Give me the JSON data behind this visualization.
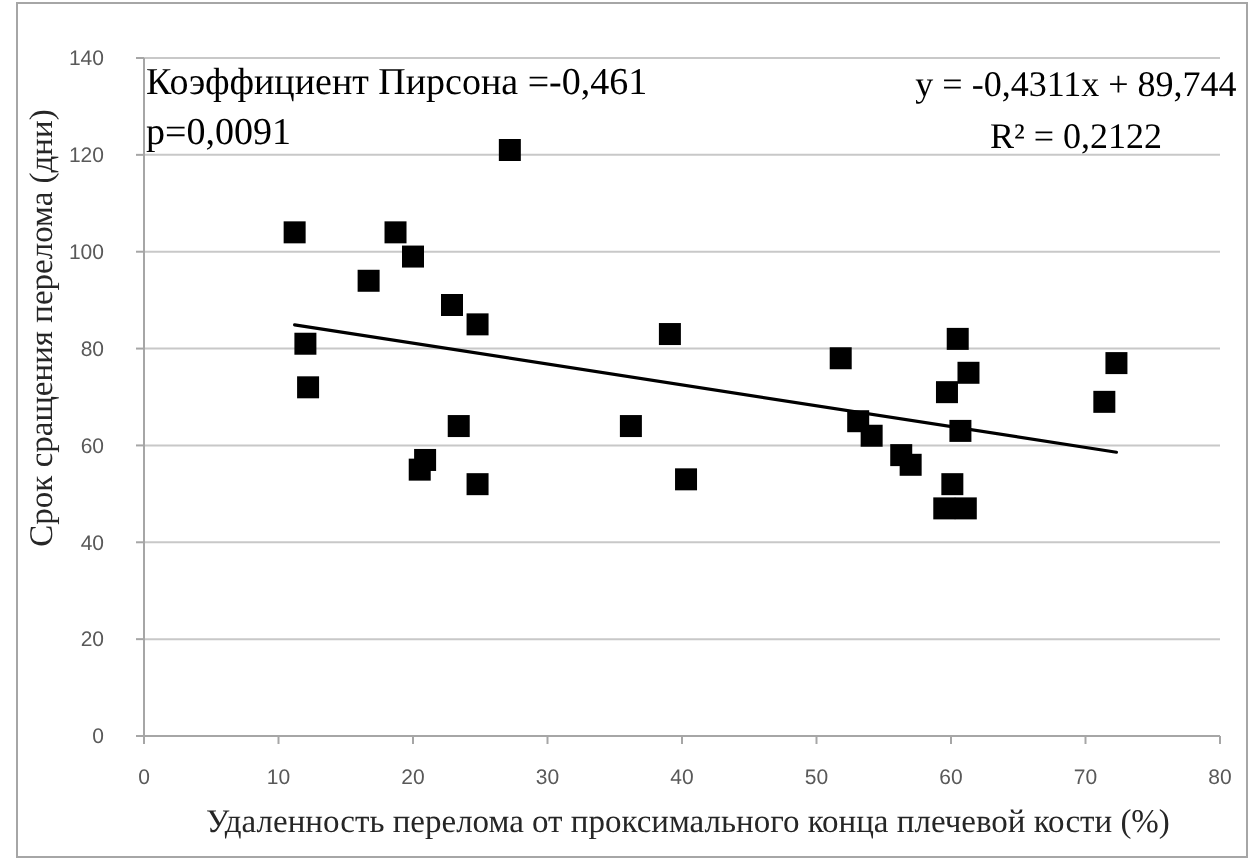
{
  "chart_data": {
    "type": "scatter",
    "xlabel": "Удаленность перелома от проксимального конца плечевой кости (%)",
    "ylabel": "Срок сращения перелома (дни)",
    "xlim": [
      0,
      80
    ],
    "ylim": [
      0,
      140
    ],
    "xticks": [
      0,
      10,
      20,
      30,
      40,
      50,
      60,
      70,
      80
    ],
    "yticks": [
      0,
      20,
      40,
      60,
      80,
      100,
      120,
      140
    ],
    "grid": "y",
    "marker": "square",
    "annotations": [
      "Коэффициент Пирсона =-0,461",
      "p=0,0091",
      "y = -0,4311x + 89,744",
      "R² = 0,2122"
    ],
    "series": [
      {
        "color": "#000000",
        "x": [
          11.2,
          12.0,
          12.2,
          16.7,
          18.7,
          20.0,
          20.5,
          20.9,
          22.9,
          23.4,
          24.8,
          24.8,
          27.2,
          36.2,
          39.1,
          40.3,
          51.8,
          53.1,
          54.1,
          56.3,
          57.0,
          59.5,
          59.7,
          60.1,
          60.5,
          60.7,
          61.1,
          61.3,
          71.4,
          72.3
        ],
        "values": [
          104,
          81,
          72,
          94,
          104,
          99,
          55,
          57,
          89,
          64,
          85,
          52,
          121,
          64,
          83,
          53,
          78,
          65,
          62,
          58,
          56,
          47,
          71,
          52,
          82,
          63,
          47,
          75,
          69,
          77
        ]
      },
      {
        "type": "line",
        "color": "#000000",
        "marker": "none",
        "line_style": "solid",
        "x": [
          11.2,
          72.3
        ],
        "values": [
          84.9,
          58.6
        ]
      }
    ]
  }
}
